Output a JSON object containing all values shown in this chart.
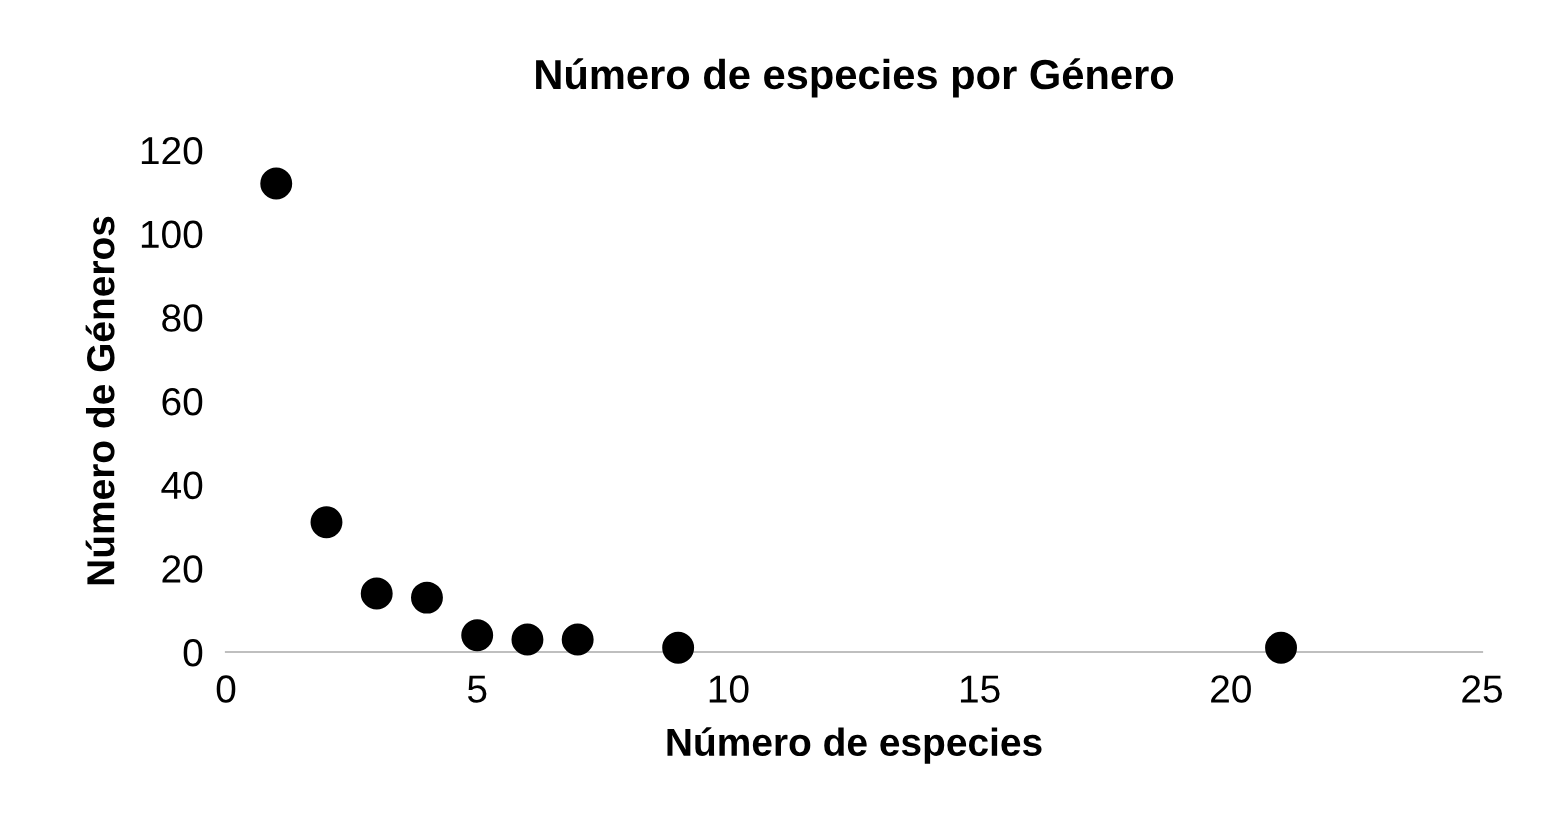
{
  "chart_data": {
    "type": "scatter",
    "title": "Número de especies por Género",
    "xlabel": "Número de especies",
    "ylabel": "Número de Géneros",
    "x": [
      1,
      2,
      3,
      4,
      5,
      6,
      7,
      9,
      21
    ],
    "series": [
      {
        "color": "#000000",
        "values": [
          112,
          31,
          14,
          13,
          4,
          3,
          3,
          1,
          1
        ]
      }
    ],
    "xlim": [
      0,
      25
    ],
    "xticks": [
      0,
      5,
      10,
      15,
      20,
      25
    ],
    "ylim": [
      0,
      120
    ],
    "yticks": [
      0,
      20,
      40,
      60,
      80,
      100,
      120
    ],
    "grid": false,
    "legend": false,
    "marker": "circle"
  }
}
